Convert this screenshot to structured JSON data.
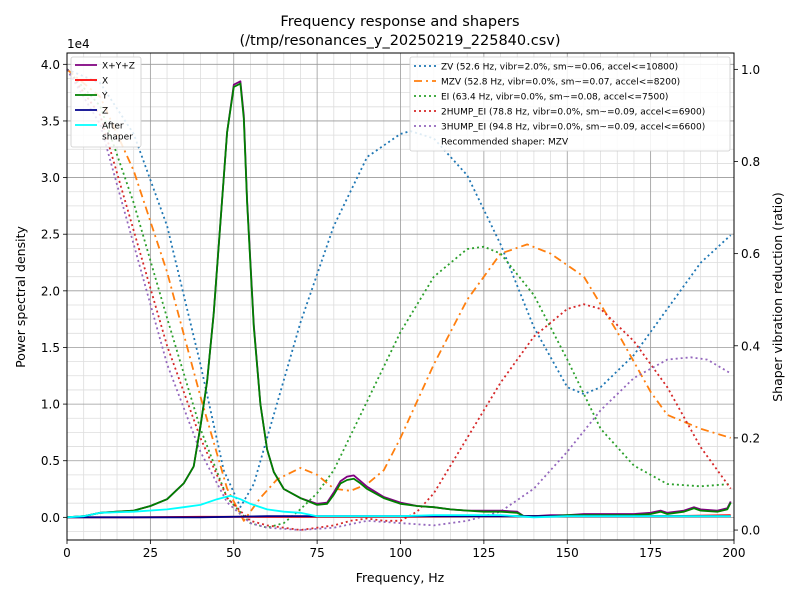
{
  "chart_data": {
    "type": "line",
    "title_line1": "Frequency response and shapers",
    "title_line2": "(/tmp/resonances_y_20250219_225840.csv)",
    "xlabel": "Frequency, Hz",
    "ylabel": "Power spectral density",
    "y2label": "Shaper vibration reduction (ratio)",
    "y_scale_label": "1e4",
    "xlim": [
      0,
      200
    ],
    "ylim": [
      -0.2,
      4.1
    ],
    "y2lim": [
      -0.0216,
      1.0355
    ],
    "x_ticks": [
      0,
      25,
      50,
      75,
      100,
      125,
      150,
      175,
      200
    ],
    "y_ticks": [
      0.0,
      0.5,
      1.0,
      1.5,
      2.0,
      2.5,
      3.0,
      3.5,
      4.0
    ],
    "y2_ticks": [
      0.0,
      0.2,
      0.4,
      0.6,
      0.8,
      1.0
    ],
    "grid": true,
    "psd_legend_position": "upper-left",
    "shaper_legend_position": "upper-right",
    "psd_series": [
      {
        "name": "X+Y+Z",
        "color": "#800080",
        "points": [
          [
            0,
            0
          ],
          [
            5,
            0.01
          ],
          [
            10,
            0.04
          ],
          [
            15,
            0.05
          ],
          [
            20,
            0.06
          ],
          [
            25,
            0.1
          ],
          [
            30,
            0.16
          ],
          [
            35,
            0.3
          ],
          [
            38,
            0.45
          ],
          [
            40,
            0.8
          ],
          [
            42,
            1.2
          ],
          [
            44,
            1.8
          ],
          [
            46,
            2.6
          ],
          [
            48,
            3.4
          ],
          [
            50,
            3.82
          ],
          [
            52,
            3.85
          ],
          [
            53,
            3.55
          ],
          [
            54,
            2.8
          ],
          [
            56,
            1.7
          ],
          [
            58,
            1.0
          ],
          [
            60,
            0.6
          ],
          [
            62,
            0.4
          ],
          [
            65,
            0.25
          ],
          [
            70,
            0.17
          ],
          [
            75,
            0.12
          ],
          [
            78,
            0.13
          ],
          [
            80,
            0.22
          ],
          [
            82,
            0.32
          ],
          [
            84,
            0.36
          ],
          [
            86,
            0.37
          ],
          [
            88,
            0.32
          ],
          [
            90,
            0.27
          ],
          [
            95,
            0.18
          ],
          [
            100,
            0.13
          ],
          [
            105,
            0.1
          ],
          [
            110,
            0.09
          ],
          [
            115,
            0.07
          ],
          [
            120,
            0.06
          ],
          [
            125,
            0.06
          ],
          [
            130,
            0.06
          ],
          [
            135,
            0.05
          ],
          [
            137,
            0.01
          ],
          [
            140,
            0.01
          ],
          [
            145,
            0.02
          ],
          [
            150,
            0.02
          ],
          [
            155,
            0.03
          ],
          [
            160,
            0.03
          ],
          [
            165,
            0.03
          ],
          [
            170,
            0.03
          ],
          [
            175,
            0.04
          ],
          [
            178,
            0.06
          ],
          [
            180,
            0.04
          ],
          [
            185,
            0.06
          ],
          [
            188,
            0.09
          ],
          [
            190,
            0.07
          ],
          [
            195,
            0.06
          ],
          [
            198,
            0.08
          ],
          [
            199,
            0.14
          ]
        ]
      },
      {
        "name": "X",
        "color": "#ff0000",
        "points": [
          [
            0,
            0
          ],
          [
            20,
            0
          ],
          [
            40,
            0.005
          ],
          [
            60,
            0.005
          ],
          [
            80,
            0.005
          ],
          [
            100,
            0.005
          ],
          [
            120,
            0.01
          ],
          [
            140,
            0.01
          ],
          [
            160,
            0.01
          ],
          [
            180,
            0.01
          ],
          [
            199,
            0.02
          ]
        ]
      },
      {
        "name": "Y",
        "color": "#008000",
        "points": [
          [
            0,
            0
          ],
          [
            5,
            0.01
          ],
          [
            10,
            0.04
          ],
          [
            15,
            0.05
          ],
          [
            20,
            0.06
          ],
          [
            25,
            0.1
          ],
          [
            30,
            0.16
          ],
          [
            35,
            0.3
          ],
          [
            38,
            0.45
          ],
          [
            40,
            0.8
          ],
          [
            42,
            1.2
          ],
          [
            44,
            1.8
          ],
          [
            46,
            2.6
          ],
          [
            48,
            3.4
          ],
          [
            50,
            3.8
          ],
          [
            52,
            3.83
          ],
          [
            53,
            3.52
          ],
          [
            54,
            2.78
          ],
          [
            56,
            1.68
          ],
          [
            58,
            1.0
          ],
          [
            60,
            0.6
          ],
          [
            62,
            0.4
          ],
          [
            65,
            0.25
          ],
          [
            70,
            0.17
          ],
          [
            75,
            0.11
          ],
          [
            78,
            0.12
          ],
          [
            80,
            0.2
          ],
          [
            82,
            0.3
          ],
          [
            84,
            0.33
          ],
          [
            86,
            0.34
          ],
          [
            88,
            0.3
          ],
          [
            90,
            0.25
          ],
          [
            95,
            0.17
          ],
          [
            100,
            0.12
          ],
          [
            105,
            0.1
          ],
          [
            110,
            0.09
          ],
          [
            115,
            0.07
          ],
          [
            120,
            0.06
          ],
          [
            125,
            0.05
          ],
          [
            130,
            0.05
          ],
          [
            135,
            0.04
          ],
          [
            137,
            0.01
          ],
          [
            140,
            0.01
          ],
          [
            145,
            0.01
          ],
          [
            150,
            0.02
          ],
          [
            155,
            0.02
          ],
          [
            160,
            0.02
          ],
          [
            165,
            0.02
          ],
          [
            170,
            0.02
          ],
          [
            175,
            0.03
          ],
          [
            178,
            0.05
          ],
          [
            180,
            0.03
          ],
          [
            185,
            0.05
          ],
          [
            188,
            0.08
          ],
          [
            190,
            0.06
          ],
          [
            195,
            0.05
          ],
          [
            198,
            0.07
          ],
          [
            199,
            0.13
          ]
        ]
      },
      {
        "name": "Z",
        "color": "#00008b",
        "points": [
          [
            0,
            0
          ],
          [
            20,
            0
          ],
          [
            40,
            0
          ],
          [
            60,
            0.01
          ],
          [
            80,
            0.01
          ],
          [
            100,
            0.01
          ],
          [
            120,
            0.01
          ],
          [
            140,
            0.01
          ],
          [
            160,
            0.01
          ],
          [
            180,
            0.01
          ],
          [
            199,
            0.01
          ]
        ]
      },
      {
        "name": "After\nshaper",
        "color": "#00ffff",
        "points": [
          [
            0,
            0
          ],
          [
            5,
            0.01
          ],
          [
            10,
            0.04
          ],
          [
            20,
            0.05
          ],
          [
            30,
            0.07
          ],
          [
            35,
            0.09
          ],
          [
            40,
            0.11
          ],
          [
            45,
            0.16
          ],
          [
            49,
            0.19
          ],
          [
            52,
            0.16
          ],
          [
            55,
            0.12
          ],
          [
            60,
            0.07
          ],
          [
            65,
            0.05
          ],
          [
            70,
            0.04
          ],
          [
            75,
            0.01
          ],
          [
            80,
            0.01
          ],
          [
            85,
            0.01
          ],
          [
            90,
            0.01
          ],
          [
            100,
            0.01
          ],
          [
            110,
            0.02
          ],
          [
            120,
            0.02
          ],
          [
            130,
            0.02
          ],
          [
            135,
            0.01
          ],
          [
            140,
            0.0
          ],
          [
            150,
            0.01
          ],
          [
            160,
            0.01
          ],
          [
            170,
            0.01
          ],
          [
            180,
            0.01
          ],
          [
            190,
            0.01
          ],
          [
            199,
            0.01
          ]
        ]
      }
    ],
    "shaper_series": [
      {
        "name": "ZV (52.6 Hz, vibr=2.0%, sm~=0.06, accel<=10800)",
        "color": "#1f77b4",
        "dash": "2,3",
        "points": [
          [
            0,
            1.0
          ],
          [
            10,
            0.97
          ],
          [
            20,
            0.86
          ],
          [
            30,
            0.66
          ],
          [
            40,
            0.36
          ],
          [
            47,
            0.13
          ],
          [
            52,
            0.05
          ],
          [
            56,
            0.1
          ],
          [
            60,
            0.2
          ],
          [
            70,
            0.45
          ],
          [
            80,
            0.66
          ],
          [
            90,
            0.81
          ],
          [
            100,
            0.86
          ],
          [
            103,
            0.866
          ],
          [
            110,
            0.85
          ],
          [
            120,
            0.77
          ],
          [
            130,
            0.62
          ],
          [
            140,
            0.44
          ],
          [
            150,
            0.31
          ],
          [
            155,
            0.295
          ],
          [
            160,
            0.31
          ],
          [
            170,
            0.38
          ],
          [
            180,
            0.48
          ],
          [
            190,
            0.58
          ],
          [
            199,
            0.64
          ]
        ]
      },
      {
        "name": "MZV (52.8 Hz, vibr=0.0%, sm~=0.07, accel<=8200)",
        "color": "#ff7f0e",
        "dash": "8,4,2,4",
        "points": [
          [
            0,
            1.0
          ],
          [
            10,
            0.94
          ],
          [
            20,
            0.78
          ],
          [
            30,
            0.56
          ],
          [
            40,
            0.29
          ],
          [
            48,
            0.09
          ],
          [
            53,
            0.02
          ],
          [
            58,
            0.07
          ],
          [
            63,
            0.11
          ],
          [
            70,
            0.135
          ],
          [
            75,
            0.12
          ],
          [
            80,
            0.09
          ],
          [
            85,
            0.085
          ],
          [
            90,
            0.1
          ],
          [
            95,
            0.13
          ],
          [
            100,
            0.2
          ],
          [
            110,
            0.36
          ],
          [
            120,
            0.5
          ],
          [
            130,
            0.6
          ],
          [
            138,
            0.62
          ],
          [
            145,
            0.6
          ],
          [
            155,
            0.55
          ],
          [
            165,
            0.43
          ],
          [
            175,
            0.3
          ],
          [
            180,
            0.25
          ],
          [
            190,
            0.22
          ],
          [
            199,
            0.2
          ]
        ]
      },
      {
        "name": "EI (63.4 Hz, vibr=0.0%, sm~=0.08, accel<=7500)",
        "color": "#2ca02c",
        "dash": "2,3",
        "points": [
          [
            0,
            1.0
          ],
          [
            10,
            0.92
          ],
          [
            20,
            0.71
          ],
          [
            30,
            0.46
          ],
          [
            40,
            0.22
          ],
          [
            48,
            0.07
          ],
          [
            55,
            0.015
          ],
          [
            60,
            0.005
          ],
          [
            65,
            0.015
          ],
          [
            70,
            0.045
          ],
          [
            75,
            0.08
          ],
          [
            80,
            0.13
          ],
          [
            90,
            0.28
          ],
          [
            100,
            0.43
          ],
          [
            110,
            0.55
          ],
          [
            120,
            0.61
          ],
          [
            125,
            0.615
          ],
          [
            130,
            0.6
          ],
          [
            140,
            0.51
          ],
          [
            150,
            0.37
          ],
          [
            160,
            0.22
          ],
          [
            170,
            0.14
          ],
          [
            180,
            0.1
          ],
          [
            190,
            0.095
          ],
          [
            199,
            0.1
          ]
        ]
      },
      {
        "name": "2HUMP_EI (78.8 Hz, vibr=0.0%, sm~=0.09, accel<=6900)",
        "color": "#d62728",
        "dash": "2,3",
        "points": [
          [
            0,
            1.0
          ],
          [
            10,
            0.9
          ],
          [
            20,
            0.65
          ],
          [
            30,
            0.4
          ],
          [
            40,
            0.2
          ],
          [
            48,
            0.07
          ],
          [
            55,
            0.02
          ],
          [
            60,
            0.01
          ],
          [
            70,
            0.0
          ],
          [
            80,
            0.01
          ],
          [
            85,
            0.02
          ],
          [
            90,
            0.025
          ],
          [
            95,
            0.02
          ],
          [
            100,
            0.02
          ],
          [
            105,
            0.04
          ],
          [
            110,
            0.08
          ],
          [
            120,
            0.2
          ],
          [
            130,
            0.32
          ],
          [
            140,
            0.42
          ],
          [
            150,
            0.48
          ],
          [
            155,
            0.49
          ],
          [
            160,
            0.48
          ],
          [
            170,
            0.41
          ],
          [
            180,
            0.31
          ],
          [
            190,
            0.18
          ],
          [
            199,
            0.09
          ]
        ]
      },
      {
        "name": "3HUMP_EI (94.8 Hz, vibr=0.0%, sm~=0.09, accel<=6600)",
        "color": "#9467bd",
        "dash": "2,3",
        "points": [
          [
            0,
            1.0
          ],
          [
            10,
            0.88
          ],
          [
            20,
            0.62
          ],
          [
            30,
            0.36
          ],
          [
            40,
            0.17
          ],
          [
            48,
            0.06
          ],
          [
            55,
            0.015
          ],
          [
            60,
            0.005
          ],
          [
            70,
            0.0
          ],
          [
            80,
            0.005
          ],
          [
            90,
            0.02
          ],
          [
            100,
            0.015
          ],
          [
            110,
            0.01
          ],
          [
            120,
            0.02
          ],
          [
            130,
            0.04
          ],
          [
            140,
            0.09
          ],
          [
            150,
            0.17
          ],
          [
            160,
            0.26
          ],
          [
            170,
            0.33
          ],
          [
            180,
            0.37
          ],
          [
            187,
            0.375
          ],
          [
            192,
            0.37
          ],
          [
            199,
            0.34
          ]
        ]
      }
    ],
    "recommended_text": "Recommended shaper: MZV"
  }
}
